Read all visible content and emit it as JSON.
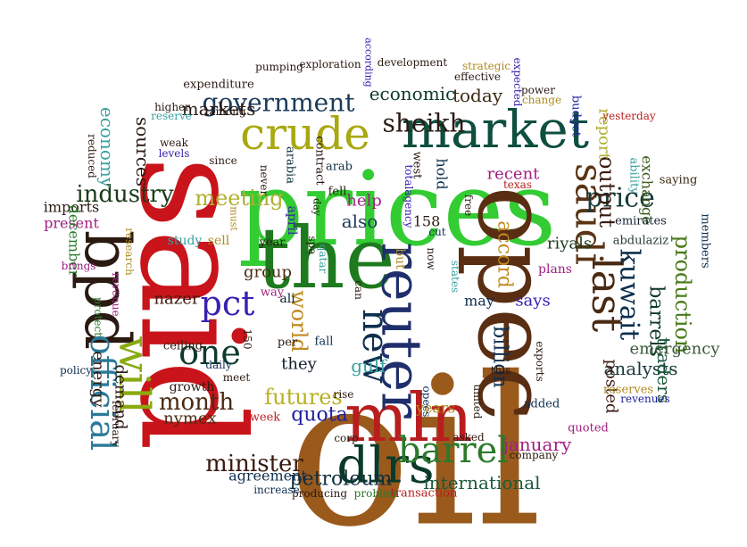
{
  "cloud": {
    "words": [
      {
        "text": "oil",
        "color": "#9a5a1c"
      },
      {
        "text": "said",
        "color": "#c8141a"
      },
      {
        "text": "prices",
        "color": "#33cc33"
      },
      {
        "text": "opec",
        "color": "#5a2e12"
      },
      {
        "text": "mln",
        "color": "#b81e1e"
      },
      {
        "text": "the",
        "color": "#1e7a1e"
      },
      {
        "text": "bpd",
        "color": "#2a1a12"
      },
      {
        "text": "reuter",
        "color": "#1f2f6b"
      },
      {
        "text": "market",
        "color": "#0f4f3f"
      },
      {
        "text": "crude",
        "color": "#a8a810"
      },
      {
        "text": "last",
        "color": "#4a2a12"
      },
      {
        "text": "saudi",
        "color": "#5a3414"
      },
      {
        "text": "dlrs",
        "color": "#0a3a2a"
      },
      {
        "text": "will",
        "color": "#8aaa10"
      },
      {
        "text": "one",
        "color": "#0e3a2e"
      },
      {
        "text": "official",
        "color": "#2a7a9a"
      },
      {
        "text": "barrel",
        "color": "#2a7a2a"
      },
      {
        "text": "pct",
        "color": "#3a20b0"
      },
      {
        "text": "new",
        "color": "#0f2f4f"
      },
      {
        "text": "kuwait",
        "color": "#0f2f4f"
      },
      {
        "text": "price",
        "color": "#1a3a3a"
      },
      {
        "text": "government",
        "color": "#1a3a5a"
      },
      {
        "text": "sheikh",
        "color": "#2a1a12"
      },
      {
        "text": "production",
        "color": "#4a7a1a"
      },
      {
        "text": "industry",
        "color": "#1a3a1a"
      },
      {
        "text": "meeting",
        "color": "#b0b030"
      },
      {
        "text": "output",
        "color": "#3a1a10"
      },
      {
        "text": "barrels",
        "color": "#0f3a2f"
      },
      {
        "text": "world",
        "color": "#c08a20"
      },
      {
        "text": "billion",
        "color": "#0f2f4f"
      },
      {
        "text": "minister",
        "color": "#3a1a10"
      },
      {
        "text": "month",
        "color": "#4a2a12"
      },
      {
        "text": "futures",
        "color": "#b8b020"
      },
      {
        "text": "quota",
        "color": "#2020a0"
      },
      {
        "text": "petroleum",
        "color": "#0f2f3f"
      },
      {
        "text": "analysts",
        "color": "#1a3a3a"
      },
      {
        "text": "markets",
        "color": "#2a1a12"
      },
      {
        "text": "economic",
        "color": "#0e3a2e"
      },
      {
        "text": "today",
        "color": "#3a2a10"
      },
      {
        "text": "accord",
        "color": "#c08a20"
      },
      {
        "text": "january",
        "color": "#a02080"
      },
      {
        "text": "sources",
        "color": "#2a1a12"
      },
      {
        "text": "economy",
        "color": "#3aa0a0"
      },
      {
        "text": "international",
        "color": "#1a5a3a"
      },
      {
        "text": "traders",
        "color": "#1a5a3a"
      },
      {
        "text": "emergency",
        "color": "#3a5a3a"
      },
      {
        "text": "demand",
        "color": "#2a1a12"
      },
      {
        "text": "energy",
        "color": "#2a1a12"
      },
      {
        "text": "nymex",
        "color": "#4a2a12"
      },
      {
        "text": "gulf",
        "color": "#3aa0a0"
      },
      {
        "text": "also",
        "color": "#1a3a5a"
      },
      {
        "text": "help",
        "color": "#a02080"
      },
      {
        "text": "group",
        "color": "#4a2a12"
      },
      {
        "text": "nazer",
        "color": "#3a1a10"
      },
      {
        "text": "may",
        "color": "#0f2f4f"
      },
      {
        "text": "they",
        "color": "#0f1f2f"
      },
      {
        "text": "says",
        "color": "#3a20b0"
      },
      {
        "text": "riyals",
        "color": "#1a3a1a"
      },
      {
        "text": "posted",
        "color": "#3a1a10"
      },
      {
        "text": "report",
        "color": "#b0b030"
      },
      {
        "text": "recent",
        "color": "#a02080"
      },
      {
        "text": "hold",
        "color": "#0f2f4f"
      },
      {
        "text": "present",
        "color": "#a02080"
      },
      {
        "text": "imports",
        "color": "#2a1a12"
      },
      {
        "text": "december",
        "color": "#2a7a2a"
      },
      {
        "text": "158",
        "color": "#2a1a12"
      },
      {
        "text": "years",
        "color": "#b08a20"
      },
      {
        "text": "agreement",
        "color": "#0f2f4f"
      },
      {
        "text": "exchange",
        "color": "#3a5a1a"
      },
      {
        "text": "emirates",
        "color": "#0f1f2f"
      },
      {
        "text": "abdulaziz",
        "color": "#2a3a3a"
      },
      {
        "text": "members",
        "color": "#0f2f4f"
      },
      {
        "text": "saying",
        "color": "#3a2a10"
      },
      {
        "text": "ability",
        "color": "#3aa0a0"
      },
      {
        "text": "budget",
        "color": "#2020a0"
      },
      {
        "text": "sell",
        "color": "#b08a20"
      },
      {
        "text": "study",
        "color": "#3aa0a0"
      },
      {
        "text": "april",
        "color": "#3a20b0"
      },
      {
        "text": "ali",
        "color": "#0f1f2f"
      },
      {
        "text": "arabia",
        "color": "#0f2f3f"
      },
      {
        "text": "contract",
        "color": "#2a1a12"
      },
      {
        "text": "arab",
        "color": "#0f2f3f"
      },
      {
        "text": "fell",
        "color": "#2a1a12"
      },
      {
        "text": "west",
        "color": "#2a1a12"
      },
      {
        "text": "free",
        "color": "#2a1a12"
      },
      {
        "text": "cut",
        "color": "#0f2f4f"
      },
      {
        "text": "now",
        "color": "#2a1a12"
      },
      {
        "text": "but",
        "color": "#b08a20"
      },
      {
        "text": "plans",
        "color": "#a02080"
      },
      {
        "text": "year",
        "color": "#2a1a12"
      },
      {
        "text": "way",
        "color": "#a02080"
      },
      {
        "text": "spa",
        "color": "#2a1a12"
      },
      {
        "text": "qatar",
        "color": "#3aa0a0"
      },
      {
        "text": "fall",
        "color": "#0f2f4f"
      },
      {
        "text": "per",
        "color": "#2a1a12"
      },
      {
        "text": "corp",
        "color": "#2a1a12"
      },
      {
        "text": "opecs",
        "color": "#0f2f4f"
      },
      {
        "text": "united",
        "color": "#2a1a12"
      },
      {
        "text": "states",
        "color": "#3aa0a0"
      },
      {
        "text": "asked",
        "color": "#2a1a12"
      },
      {
        "text": "this",
        "color": "#2a1a12"
      },
      {
        "text": "exports",
        "color": "#2a1a12"
      },
      {
        "text": "added",
        "color": "#0f2f4f"
      },
      {
        "text": "quoted",
        "color": "#a02080"
      },
      {
        "text": "company",
        "color": "#2a1a12"
      },
      {
        "text": "reserves",
        "color": "#b08a20"
      },
      {
        "text": "revenues",
        "color": "#2020a0"
      },
      {
        "text": "transaction",
        "color": "#b81e1e"
      },
      {
        "text": "problem",
        "color": "#2a7a2a"
      },
      {
        "text": "producing",
        "color": "#2a1a12"
      },
      {
        "text": "increase",
        "color": "#0f2f4f"
      },
      {
        "text": "week",
        "color": "#b81e1e"
      },
      {
        "text": "meet",
        "color": "#2a1a12"
      },
      {
        "text": "rise",
        "color": "#2a1a12"
      },
      {
        "text": "growth",
        "color": "#2a1a12"
      },
      {
        "text": "daily",
        "color": "#0f2f4f"
      },
      {
        "text": "150",
        "color": "#2a1a12"
      },
      {
        "text": "ceiling",
        "color": "#2a1a12"
      },
      {
        "text": "policy",
        "color": "#0f2f4f"
      },
      {
        "text": "protect",
        "color": "#2a7a2a"
      },
      {
        "text": "revenue",
        "color": "#a02080"
      },
      {
        "text": "february",
        "color": "#2a1a12"
      },
      {
        "text": "brings",
        "color": "#a02080"
      },
      {
        "text": "research",
        "color": "#b08a20"
      },
      {
        "text": "since",
        "color": "#2a1a12"
      },
      {
        "text": "weak",
        "color": "#2a1a12"
      },
      {
        "text": "levels",
        "color": "#3a20b0"
      },
      {
        "text": "reduced",
        "color": "#2a1a12"
      },
      {
        "text": "never",
        "color": "#2a1a12"
      },
      {
        "text": "must",
        "color": "#b08a20"
      },
      {
        "text": "day",
        "color": "#2a1a12"
      },
      {
        "text": "can",
        "color": "#2a1a12"
      },
      {
        "text": "totalagency",
        "color": "#3a20b0"
      },
      {
        "text": "texas",
        "color": "#b81e1e"
      },
      {
        "text": "higher",
        "color": "#2a1a12"
      },
      {
        "text": "reserve",
        "color": "#3aa0a0"
      },
      {
        "text": "among",
        "color": "#2a1a12"
      },
      {
        "text": "expenditure",
        "color": "#2a1a12"
      },
      {
        "text": "pumping",
        "color": "#2a1a12"
      },
      {
        "text": "exploration",
        "color": "#2a1a12"
      },
      {
        "text": "according",
        "color": "#3a20b0"
      },
      {
        "text": "development",
        "color": "#2a1a12"
      },
      {
        "text": "strategic",
        "color": "#b08a20"
      },
      {
        "text": "effective",
        "color": "#2a1a12"
      },
      {
        "text": "expected",
        "color": "#3a20b0"
      },
      {
        "text": "power",
        "color": "#2a1a12"
      },
      {
        "text": "change",
        "color": "#b08a20"
      },
      {
        "text": "yesterday",
        "color": "#b81e1e"
      }
    ]
  }
}
